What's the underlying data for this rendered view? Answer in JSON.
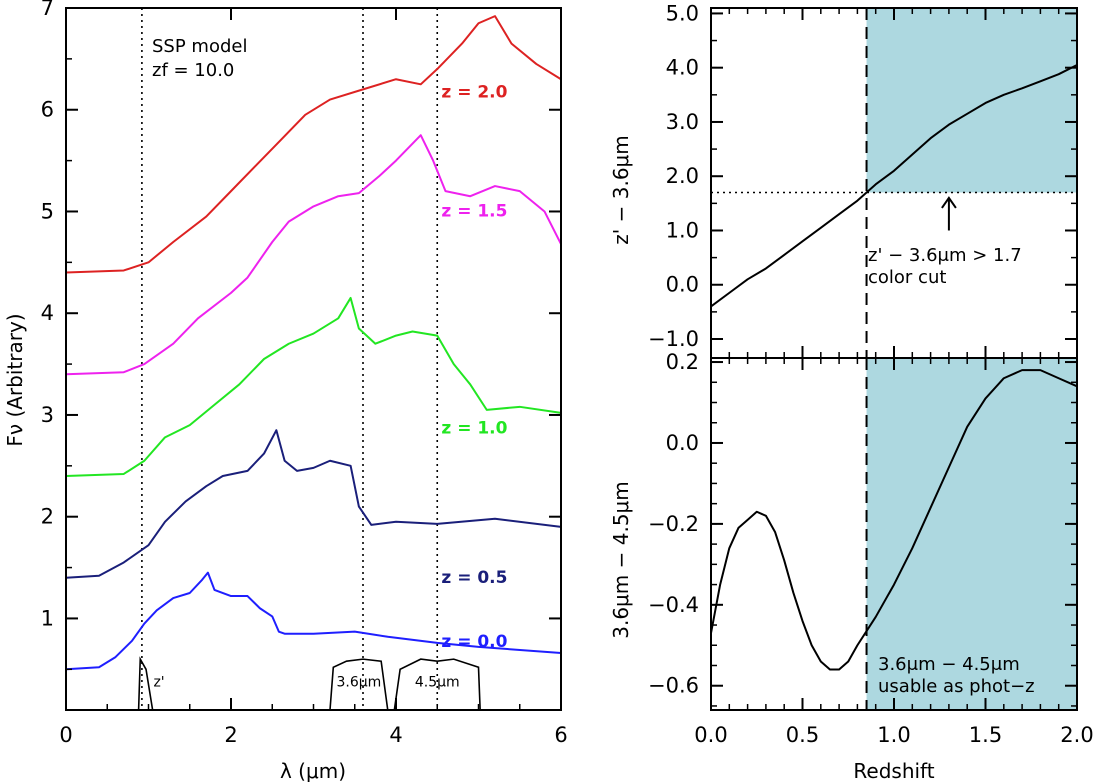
{
  "chart_data": [
    {
      "type": "line",
      "xlabel": "λ (μm)",
      "ylabel": "Fν (Arbitrary)",
      "xlim": [
        0,
        6
      ],
      "ylim": [
        0.1,
        7.0
      ],
      "xticks": [
        "0",
        "2",
        "4",
        "6"
      ],
      "yticks": [
        "1",
        "2",
        "3",
        "4",
        "5",
        "6",
        "7"
      ],
      "annotation": {
        "line1": "SSP model",
        "line2": "zf = 10.0"
      },
      "vlines_x": [
        0.92,
        3.6,
        4.5
      ],
      "series": [
        {
          "name": "z = 0.0",
          "color": "#1f1fff",
          "label_x": 4.55,
          "label_y": 0.72,
          "x": [
            0,
            0.4,
            0.6,
            0.8,
            0.95,
            1.1,
            1.3,
            1.5,
            1.65,
            1.72,
            1.8,
            2.0,
            2.2,
            2.35,
            2.5,
            2.58,
            2.65,
            3.0,
            3.5,
            3.9,
            4.5,
            5.0,
            6.0
          ],
          "y": [
            0.5,
            0.52,
            0.62,
            0.78,
            0.95,
            1.08,
            1.2,
            1.25,
            1.38,
            1.45,
            1.28,
            1.22,
            1.22,
            1.1,
            1.02,
            0.87,
            0.85,
            0.85,
            0.87,
            0.82,
            0.76,
            0.72,
            0.66
          ]
        },
        {
          "name": "z = 0.5",
          "color": "#1a1f7a",
          "label_x": 4.55,
          "label_y": 1.35,
          "x": [
            0,
            0.4,
            0.7,
            1.0,
            1.2,
            1.45,
            1.7,
            1.9,
            2.2,
            2.4,
            2.55,
            2.65,
            2.8,
            3.0,
            3.2,
            3.45,
            3.55,
            3.7,
            4.0,
            4.5,
            5.2,
            6.0
          ],
          "y": [
            1.4,
            1.42,
            1.55,
            1.72,
            1.95,
            2.15,
            2.3,
            2.4,
            2.45,
            2.62,
            2.85,
            2.55,
            2.45,
            2.48,
            2.55,
            2.5,
            2.1,
            1.92,
            1.95,
            1.93,
            1.98,
            1.9
          ]
        },
        {
          "name": "z = 1.0",
          "color": "#22e622",
          "label_x": 4.55,
          "label_y": 2.82,
          "x": [
            0,
            0.7,
            0.95,
            1.2,
            1.5,
            1.8,
            2.1,
            2.4,
            2.7,
            3.0,
            3.3,
            3.45,
            3.55,
            3.75,
            4.0,
            4.2,
            4.5,
            4.7,
            4.9,
            5.1,
            5.5,
            6.0
          ],
          "y": [
            2.4,
            2.42,
            2.55,
            2.78,
            2.9,
            3.1,
            3.3,
            3.55,
            3.7,
            3.8,
            3.95,
            4.15,
            3.85,
            3.7,
            3.78,
            3.82,
            3.78,
            3.5,
            3.3,
            3.05,
            3.08,
            3.02
          ]
        },
        {
          "name": "z = 1.5",
          "color": "#ee22ee",
          "label_x": 4.55,
          "label_y": 4.95,
          "x": [
            0,
            0.7,
            0.95,
            1.3,
            1.6,
            2.0,
            2.2,
            2.5,
            2.7,
            3.0,
            3.3,
            3.55,
            3.8,
            4.0,
            4.3,
            4.45,
            4.6,
            4.9,
            5.2,
            5.5,
            5.8,
            6.0
          ],
          "y": [
            3.4,
            3.42,
            3.5,
            3.7,
            3.95,
            4.2,
            4.35,
            4.7,
            4.9,
            5.05,
            5.15,
            5.18,
            5.35,
            5.5,
            5.75,
            5.5,
            5.2,
            5.15,
            5.25,
            5.2,
            5.0,
            4.68
          ]
        },
        {
          "name": "z = 2.0",
          "color": "#dd2222",
          "label_x": 4.55,
          "label_y": 6.12,
          "x": [
            0,
            0.7,
            1.0,
            1.3,
            1.7,
            2.0,
            2.3,
            2.6,
            2.9,
            3.2,
            3.6,
            4.0,
            4.3,
            4.5,
            4.8,
            5.0,
            5.2,
            5.4,
            5.7,
            6.0
          ],
          "y": [
            4.4,
            4.42,
            4.5,
            4.7,
            4.95,
            5.2,
            5.45,
            5.7,
            5.95,
            6.1,
            6.2,
            6.3,
            6.25,
            6.4,
            6.65,
            6.85,
            6.92,
            6.65,
            6.45,
            6.3
          ]
        }
      ],
      "filters": [
        {
          "name": "z'",
          "label": "z'",
          "x": [
            0.88,
            0.9,
            0.97,
            1.05
          ],
          "y": [
            0.1,
            0.6,
            0.5,
            0.1
          ]
        },
        {
          "name": "3.6μm",
          "label": "3.6μm",
          "x": [
            3.2,
            3.24,
            3.4,
            3.6,
            3.82,
            3.9
          ],
          "y": [
            0.1,
            0.52,
            0.58,
            0.6,
            0.58,
            0.1
          ]
        },
        {
          "name": "4.5μm",
          "label": "4.5μm",
          "x": [
            3.98,
            4.05,
            4.3,
            4.5,
            4.7,
            5.0,
            5.02
          ],
          "y": [
            0.1,
            0.5,
            0.6,
            0.58,
            0.6,
            0.52,
            0.1
          ]
        }
      ]
    },
    {
      "type": "line",
      "xlabel": "",
      "ylabel": "z' − 3.6μm",
      "xlim": [
        0,
        2
      ],
      "ylim": [
        -1.35,
        5.1
      ],
      "yticks": [
        "−1.0",
        "0.0",
        "1.0",
        "2.0",
        "3.0",
        "4.0",
        "5.0"
      ],
      "shade_x": [
        0.85,
        2.0
      ],
      "shade_y_from": 1.7,
      "shade_color": "#add8e0",
      "hline_y": 1.7,
      "vline_x": 0.85,
      "annotation": {
        "line1": "z' − 3.6μm > 1.7",
        "line2": "color cut"
      },
      "arrow": {
        "x": 1.3,
        "y_from": 1.0,
        "y_to": 1.6
      },
      "series": [
        {
          "name": "",
          "x": [
            0,
            0.1,
            0.2,
            0.3,
            0.4,
            0.5,
            0.6,
            0.7,
            0.8,
            0.9,
            1.0,
            1.1,
            1.2,
            1.3,
            1.4,
            1.5,
            1.6,
            1.7,
            1.8,
            1.9,
            2.0
          ],
          "y": [
            -0.4,
            -0.15,
            0.1,
            0.3,
            0.55,
            0.8,
            1.05,
            1.3,
            1.55,
            1.85,
            2.1,
            2.4,
            2.7,
            2.95,
            3.15,
            3.35,
            3.5,
            3.62,
            3.75,
            3.88,
            4.05
          ]
        }
      ]
    },
    {
      "type": "line",
      "xlabel": "Redshift",
      "ylabel": "3.6μm − 4.5μm",
      "xlim": [
        0,
        2
      ],
      "ylim": [
        -0.66,
        0.21
      ],
      "xticks": [
        "0.0",
        "0.5",
        "1.0",
        "1.5",
        "2.0"
      ],
      "yticks": [
        "−0.6",
        "−0.4",
        "−0.2",
        "0.0",
        "0.2"
      ],
      "shade_x": [
        0.85,
        2.0
      ],
      "shade_color": "#add8e0",
      "vline_x": 0.85,
      "annotation": {
        "line1": "3.6μm − 4.5μm",
        "line2": "usable as phot−z"
      },
      "series": [
        {
          "name": "",
          "x": [
            0,
            0.05,
            0.1,
            0.15,
            0.2,
            0.25,
            0.3,
            0.35,
            0.4,
            0.45,
            0.5,
            0.55,
            0.6,
            0.65,
            0.7,
            0.75,
            0.8,
            0.9,
            1.0,
            1.1,
            1.2,
            1.3,
            1.4,
            1.5,
            1.6,
            1.7,
            1.8,
            1.9,
            2.0
          ],
          "y": [
            -0.47,
            -0.35,
            -0.26,
            -0.21,
            -0.19,
            -0.17,
            -0.18,
            -0.22,
            -0.29,
            -0.37,
            -0.44,
            -0.5,
            -0.54,
            -0.56,
            -0.56,
            -0.54,
            -0.5,
            -0.43,
            -0.35,
            -0.26,
            -0.16,
            -0.06,
            0.04,
            0.11,
            0.16,
            0.18,
            0.18,
            0.16,
            0.14
          ]
        }
      ]
    }
  ]
}
